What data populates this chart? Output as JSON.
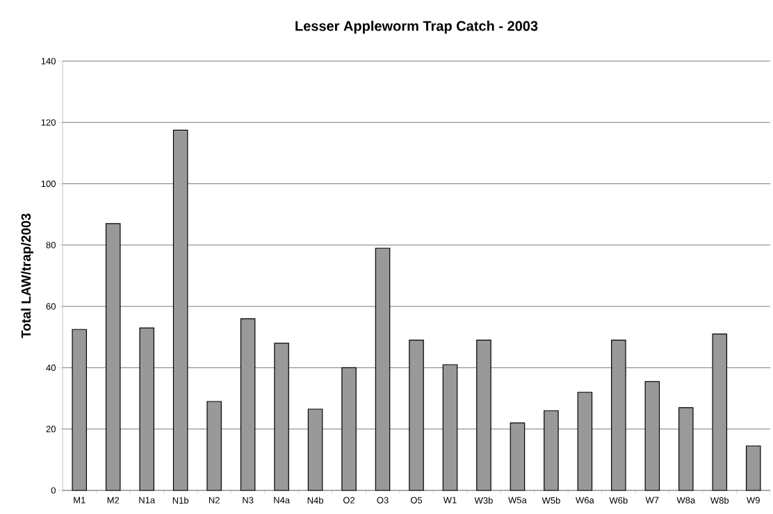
{
  "chart_data": {
    "type": "bar",
    "title": "Lesser Appleworm Trap Catch - 2003",
    "ylabel": "Total LAW/trap/2003",
    "categories": [
      "M1",
      "M2",
      "N1a",
      "N1b",
      "N2",
      "N3",
      "N4a",
      "N4b",
      "O2",
      "O3",
      "O5",
      "W1",
      "W3b",
      "W5a",
      "W5b",
      "W6a",
      "W6b",
      "W7",
      "W8a",
      "W8b",
      "W9"
    ],
    "values": [
      52.5,
      87,
      53,
      117.5,
      29,
      56,
      48,
      26.5,
      40,
      79,
      49,
      41,
      49,
      22,
      26,
      32,
      49,
      35.5,
      27,
      51,
      14.5
    ],
    "color": "#999999",
    "ylim": [
      0,
      140
    ],
    "yticks": [
      0,
      20,
      40,
      60,
      80,
      100,
      120,
      140
    ],
    "grid": "y",
    "legend": false
  }
}
